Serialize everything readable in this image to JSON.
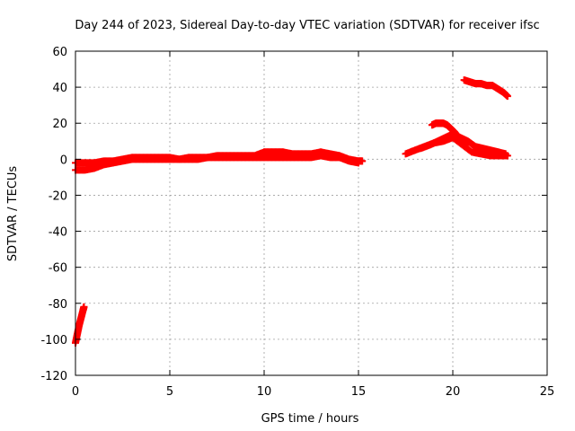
{
  "chart_data": {
    "type": "scatter",
    "title": "Day 244 of 2023, Sidereal Day-to-day VTEC variation (SDTVAR) for receiver ifsc",
    "xlabel": "GPS time / hours",
    "ylabel": "SDTVAR / TECUs",
    "xlim": [
      0,
      25
    ],
    "ylim": [
      -120,
      60
    ],
    "x_ticks": [
      0,
      5,
      10,
      15,
      20,
      25
    ],
    "y_ticks": [
      -120,
      -100,
      -80,
      -60,
      -40,
      -20,
      0,
      20,
      40,
      60
    ],
    "x_tick_labels": [
      "0",
      "5",
      "10",
      "15",
      "20",
      "25"
    ],
    "y_tick_labels": [
      "-120",
      "-100",
      "-80",
      "-60",
      "-40",
      "-20",
      "0",
      "20",
      "40",
      "60"
    ],
    "grid": true,
    "marker": "plus",
    "series": [
      {
        "name": "SDTVAR",
        "color": "#ff0000",
        "segments": [
          {
            "label": "early-drop",
            "x": [
              0.0,
              0.1,
              0.2,
              0.3,
              0.4,
              0.45
            ],
            "y": [
              -102,
              -97,
              -92,
              -88,
              -84,
              -82
            ]
          },
          {
            "label": "main-trace-upper",
            "x": [
              0.0,
              0.5,
              1.0,
              1.5,
              2.0,
              2.5,
              3.0,
              3.5,
              4.0,
              4.5,
              5.0,
              5.5,
              6.0,
              6.5,
              7.0,
              7.5,
              8.0,
              8.5,
              9.0,
              9.5,
              10.0,
              10.5,
              11.0,
              11.5,
              12.0,
              12.5,
              13.0,
              13.5,
              14.0,
              14.5,
              15.0,
              15.2
            ],
            "y": [
              -2,
              -2,
              -2,
              -1,
              -1,
              0,
              1,
              1,
              1,
              1,
              1,
              0,
              1,
              1,
              1,
              2,
              2,
              2,
              2,
              2,
              4,
              4,
              4,
              3,
              3,
              3,
              4,
              3,
              2,
              0,
              -1,
              -1
            ]
          },
          {
            "label": "main-trace-lower",
            "x": [
              0.0,
              0.5,
              1.0,
              1.5,
              2.0,
              2.5,
              3.0,
              3.5,
              4.0,
              4.5,
              5.0,
              5.5,
              6.0,
              6.5,
              7.0,
              7.5,
              8.0,
              8.5,
              9.0,
              9.5,
              10.0,
              10.5,
              11.0,
              11.5,
              12.0,
              12.5,
              13.0,
              13.5,
              14.0,
              14.5,
              15.0
            ],
            "y": [
              -6,
              -6,
              -5,
              -3,
              -2,
              -1,
              0,
              0,
              0,
              0,
              0,
              0,
              0,
              0,
              1,
              1,
              1,
              1,
              1,
              1,
              1,
              1,
              1,
              1,
              1,
              1,
              2,
              1,
              1,
              -1,
              -2
            ]
          },
          {
            "label": "rise-a",
            "x": [
              17.5,
              18.0,
              18.5,
              19.0,
              19.5,
              20.0,
              20.5,
              21.0,
              21.5,
              22.0,
              22.5,
              22.9
            ],
            "y": [
              3,
              5,
              7,
              9,
              10,
              12,
              8,
              4,
              3,
              2,
              2,
              2
            ]
          },
          {
            "label": "rise-b",
            "x": [
              18.3,
              18.8,
              19.2,
              19.6,
              20.0,
              20.4,
              20.8,
              21.2,
              21.6,
              22.0,
              22.4,
              22.8
            ],
            "y": [
              6,
              8,
              10,
              12,
              14,
              12,
              10,
              7,
              6,
              5,
              4,
              3
            ]
          },
          {
            "label": "hump",
            "x": [
              18.9,
              19.1,
              19.3,
              19.5,
              19.7,
              19.9,
              20.1,
              20.3,
              20.5,
              20.7
            ],
            "y": [
              19,
              20,
              20,
              20,
              19,
              17,
              15,
              12,
              10,
              8
            ]
          },
          {
            "label": "late-high",
            "x": [
              20.6,
              20.9,
              21.2,
              21.5,
              21.8,
              22.1,
              22.4,
              22.7,
              22.9
            ],
            "y": [
              44,
              43,
              42,
              42,
              41,
              41,
              39,
              37,
              35
            ]
          }
        ]
      }
    ]
  }
}
